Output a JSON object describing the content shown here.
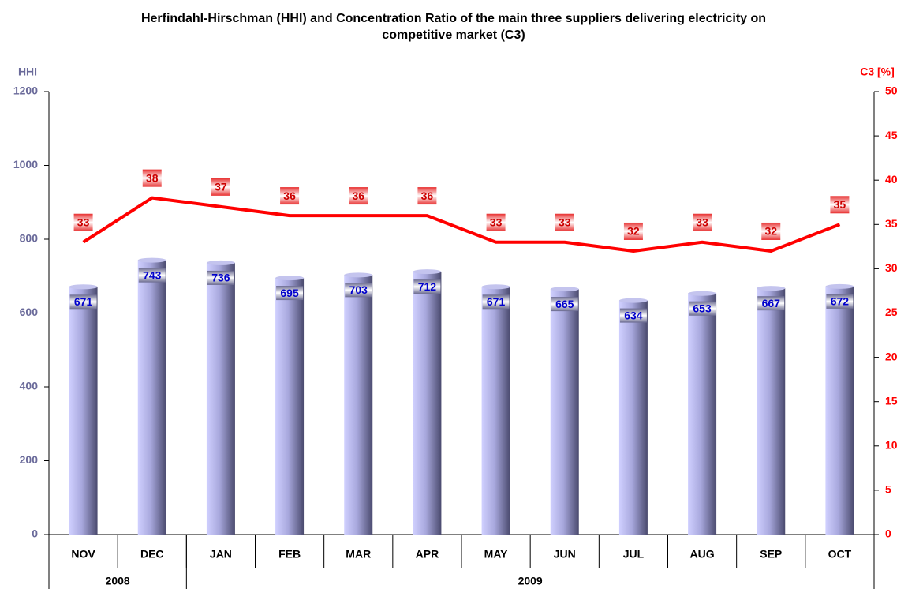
{
  "chart_data": {
    "type": "bar_line",
    "title": "Herfindahl-Hirschman (HHI) and Concentration Ratio of the main three suppliers delivering electricity on competitive market (C3)",
    "y_label": "HHI",
    "y2_label": "C3 [%]",
    "categories": [
      "NOV",
      "DEC",
      "JAN",
      "FEB",
      "MAR",
      "APR",
      "MAY",
      "JUN",
      "JUL",
      "AUG",
      "SEP",
      "OCT"
    ],
    "groups": [
      {
        "label": "2008",
        "span": 2
      },
      {
        "label": "2009",
        "span": 10
      }
    ],
    "series": [
      {
        "name": "HHI",
        "type": "bar",
        "color": "#9a9ad0",
        "label_color": "#0000cc",
        "values": [
          671,
          743,
          736,
          695,
          703,
          712,
          671,
          665,
          634,
          653,
          667,
          672
        ]
      },
      {
        "name": "C3",
        "type": "line",
        "axis": "y2",
        "color": "#ff0000",
        "label_color": "#cc0000",
        "values": [
          33,
          38,
          37,
          36,
          36,
          36,
          33,
          33,
          32,
          33,
          32,
          35
        ]
      }
    ],
    "ylim": [
      0,
      1200
    ],
    "yticks": [
      0,
      200,
      400,
      600,
      800,
      1000,
      1200
    ],
    "y2lim": [
      0,
      50
    ],
    "y2ticks": [
      0,
      5,
      10,
      15,
      20,
      25,
      30,
      35,
      40,
      45,
      50
    ],
    "y_color": "#6a6a9a",
    "y2_color": "#ff0000"
  }
}
